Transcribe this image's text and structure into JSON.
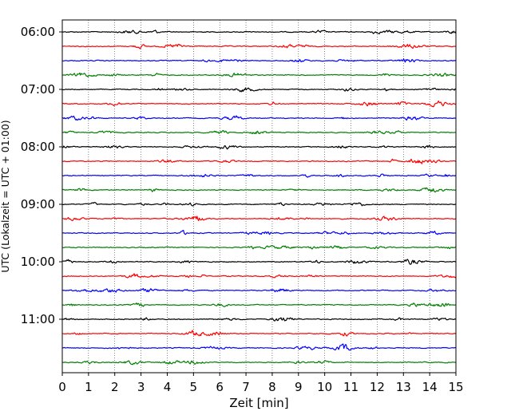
{
  "chart_data": {
    "type": "line",
    "title": "",
    "xlabel": "Zeit  [min]",
    "ylabel": "UTC (Lokalzeit = UTC + 01:00)",
    "xlim": [
      0,
      15
    ],
    "x_ticks": [
      "0",
      "1",
      "2",
      "3",
      "4",
      "5",
      "6",
      "7",
      "8",
      "9",
      "10",
      "11",
      "12",
      "13",
      "14",
      "15"
    ],
    "y_ticks": [
      {
        "label": "06:00",
        "row": 0
      },
      {
        "label": "07:00",
        "row": 4
      },
      {
        "label": "08:00",
        "row": 8
      },
      {
        "label": "09:00",
        "row": 12
      },
      {
        "label": "10:00",
        "row": 16
      },
      {
        "label": "11:00",
        "row": 20
      }
    ],
    "grid": "vertical dotted",
    "trace_count": 24,
    "trace_duration_min": 15,
    "color_cycle": [
      "#000000",
      "#ff0000",
      "#0000ff",
      "#008000"
    ],
    "series": [
      {
        "start": "06:00",
        "color": "#000000"
      },
      {
        "start": "06:15",
        "color": "#ff0000"
      },
      {
        "start": "06:30",
        "color": "#0000ff"
      },
      {
        "start": "06:45",
        "color": "#008000"
      },
      {
        "start": "07:00",
        "color": "#000000"
      },
      {
        "start": "07:15",
        "color": "#ff0000"
      },
      {
        "start": "07:30",
        "color": "#0000ff"
      },
      {
        "start": "07:45",
        "color": "#008000"
      },
      {
        "start": "08:00",
        "color": "#000000"
      },
      {
        "start": "08:15",
        "color": "#ff0000"
      },
      {
        "start": "08:30",
        "color": "#0000ff"
      },
      {
        "start": "08:45",
        "color": "#008000"
      },
      {
        "start": "09:00",
        "color": "#000000"
      },
      {
        "start": "09:15",
        "color": "#ff0000"
      },
      {
        "start": "09:30",
        "color": "#0000ff"
      },
      {
        "start": "09:45",
        "color": "#008000"
      },
      {
        "start": "10:00",
        "color": "#000000"
      },
      {
        "start": "10:15",
        "color": "#ff0000"
      },
      {
        "start": "10:30",
        "color": "#0000ff"
      },
      {
        "start": "10:45",
        "color": "#008000"
      },
      {
        "start": "11:00",
        "color": "#000000"
      },
      {
        "start": "11:15",
        "color": "#ff0000"
      },
      {
        "start": "11:30",
        "color": "#0000ff"
      },
      {
        "start": "11:45",
        "color": "#008000"
      }
    ]
  }
}
